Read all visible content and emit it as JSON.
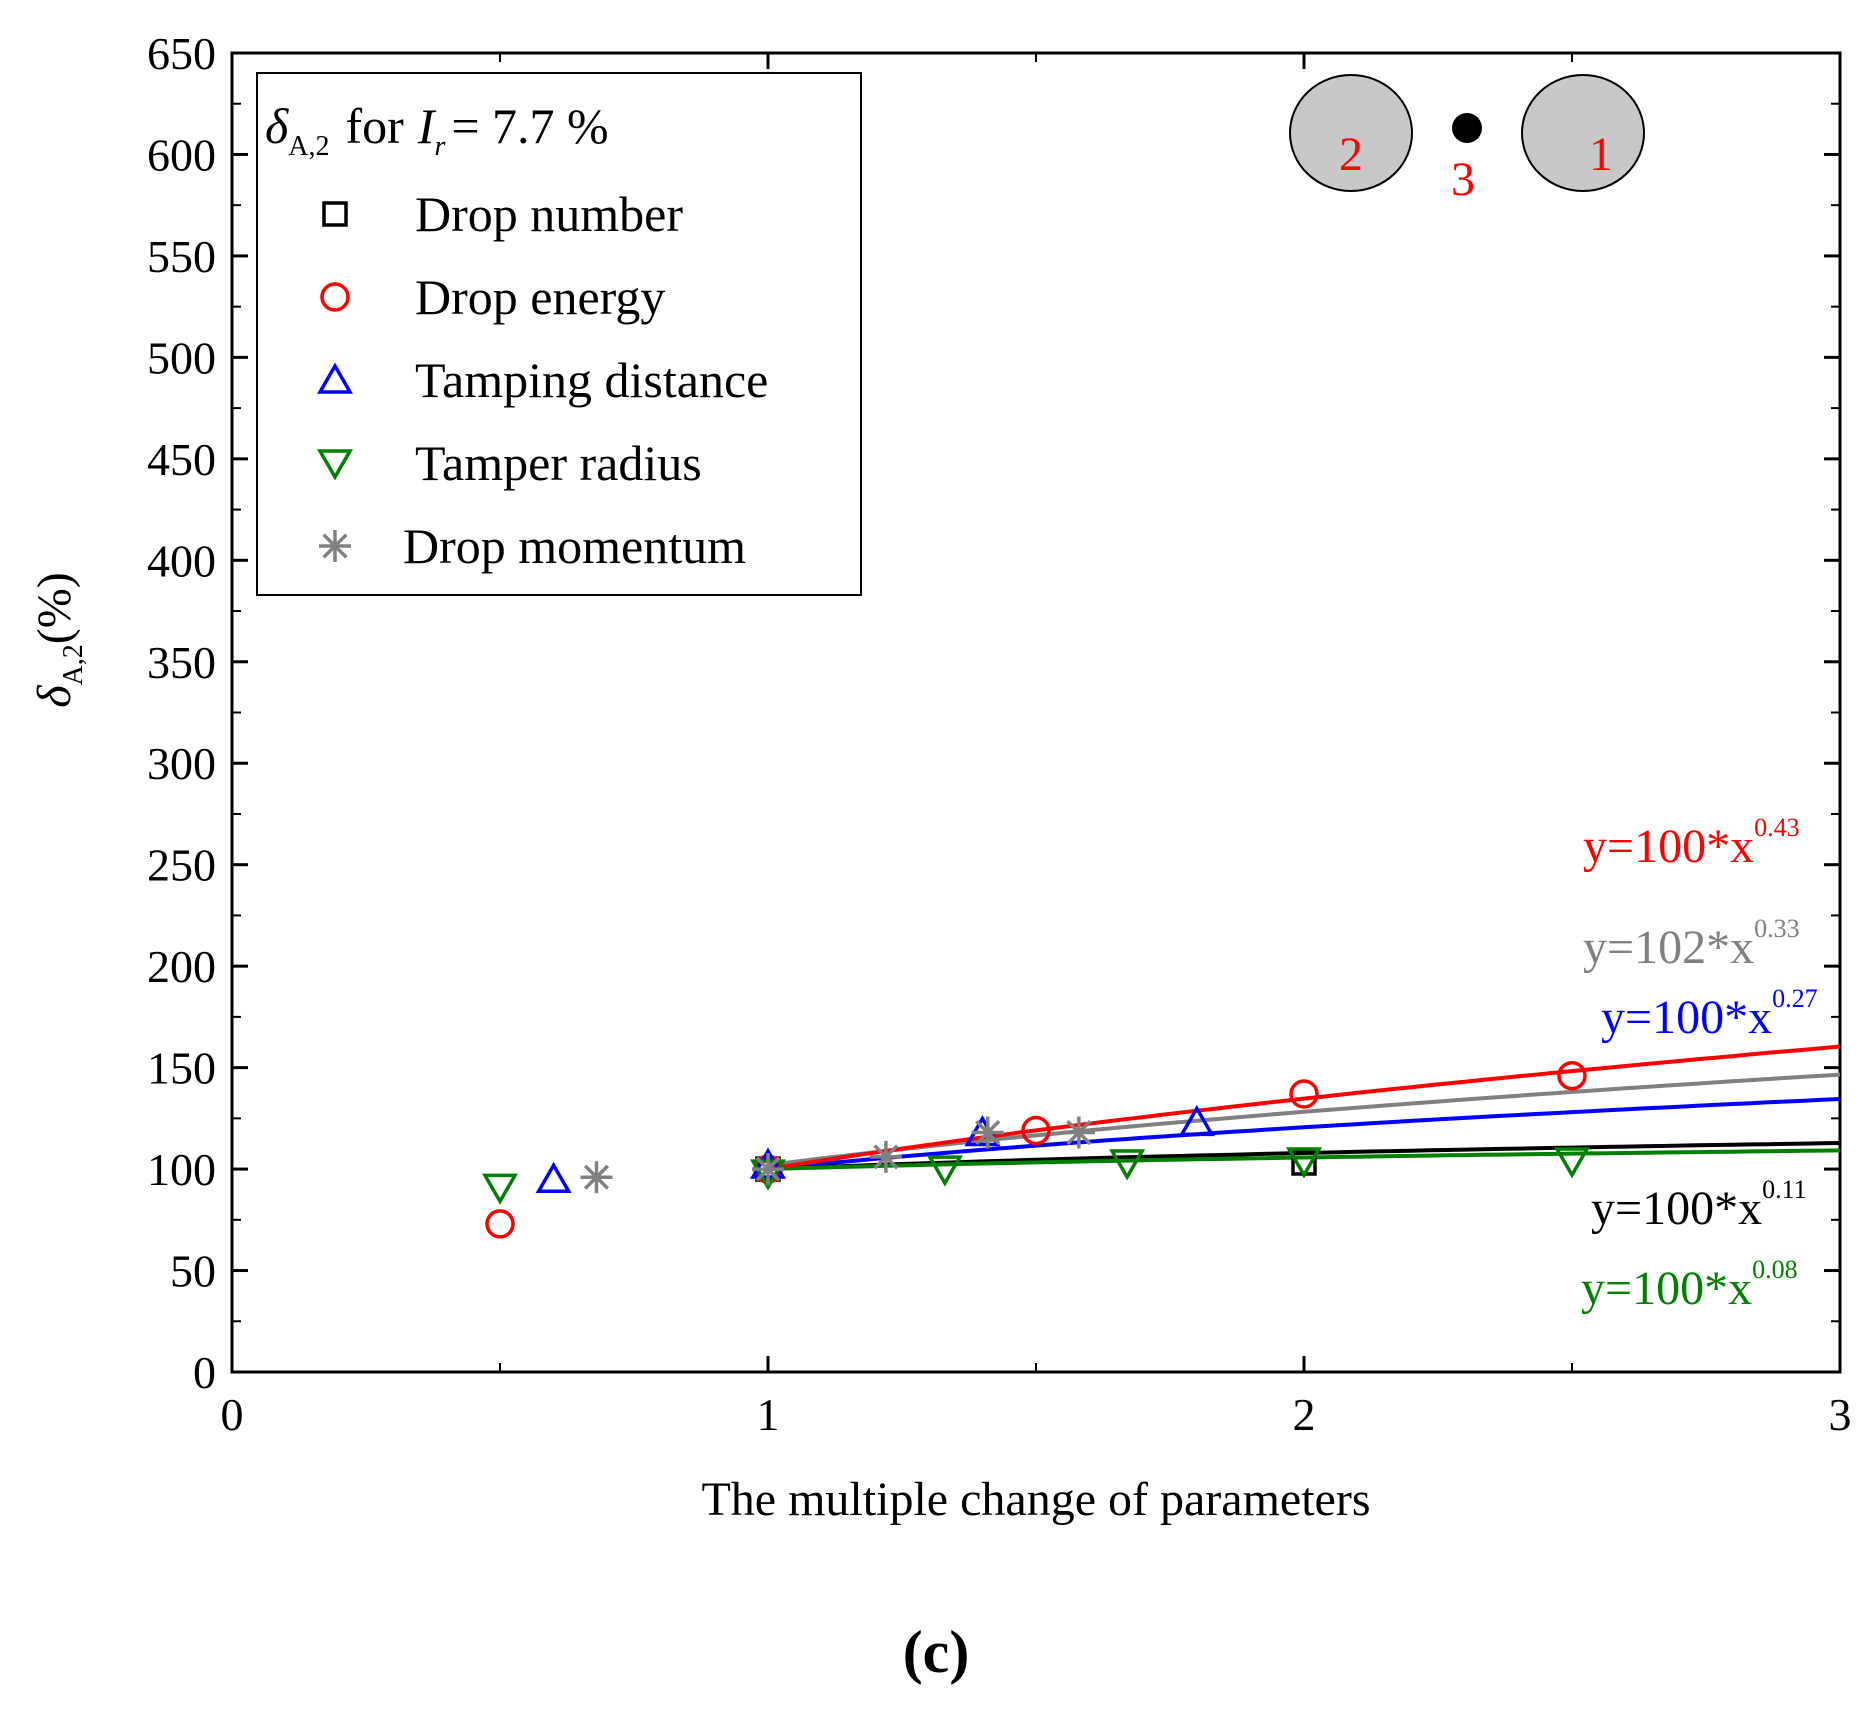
{
  "figure_label_open": "(",
  "figure_label_letter": "c",
  "figure_label_close": ")",
  "legend": {
    "title_symbol": "δ",
    "title_sub": "A,2",
    "title_for": "for",
    "title_ir": "I",
    "title_ir_sub": "r",
    "title_eq": "= 7.7 %"
  },
  "inset": {
    "circle_left": "2",
    "dot": "3",
    "circle_right": "1"
  },
  "colors": {
    "black": "#000000",
    "red": "#ff0000",
    "blue": "#0000ff",
    "green": "#008000",
    "gray": "#808080"
  },
  "chart_data": {
    "type": "scatter",
    "xlabel": "The multiple change of parameters",
    "ylabel_symbol": "δ",
    "ylabel_sub": "A,2",
    "ylabel_unit": "(%)",
    "xlim": [
      0,
      3
    ],
    "ylim": [
      0,
      650
    ],
    "x_ticks": [
      "0",
      "1",
      "2",
      "3"
    ],
    "y_ticks": [
      "0",
      "50",
      "100",
      "150",
      "200",
      "250",
      "300",
      "350",
      "400",
      "450",
      "500",
      "550",
      "600",
      "650"
    ],
    "series": [
      {
        "name": "Drop number",
        "marker": "square",
        "color": "#000000",
        "points": [
          [
            1,
            100
          ],
          [
            2,
            103
          ]
        ],
        "fit": {
          "a": 100,
          "b": 0.11,
          "prefix": "y=100*x",
          "exp": "0.11"
        }
      },
      {
        "name": "Drop energy",
        "marker": "circle",
        "color": "#ff0000",
        "points": [
          [
            0.5,
            73
          ],
          [
            1,
            100
          ],
          [
            1.5,
            119
          ],
          [
            2,
            137
          ],
          [
            2.5,
            146
          ]
        ],
        "fit": {
          "a": 100,
          "b": 0.43,
          "prefix": "y=100*x",
          "exp": "0.43"
        }
      },
      {
        "name": "Tamping distance",
        "marker": "triangle-up",
        "color": "#0000ff",
        "points": [
          [
            0.6,
            95
          ],
          [
            1,
            102
          ],
          [
            1.4,
            118
          ],
          [
            1.8,
            123
          ]
        ],
        "fit": {
          "a": 100,
          "b": 0.27,
          "prefix": "y=100*x",
          "exp": "0.27"
        }
      },
      {
        "name": "Tamper radius",
        "marker": "triangle-down",
        "color": "#008000",
        "points": [
          [
            0.5,
            91
          ],
          [
            1,
            98
          ],
          [
            1.33,
            100
          ],
          [
            1.67,
            103
          ],
          [
            2,
            104
          ],
          [
            2.5,
            104
          ]
        ],
        "fit": {
          "a": 100,
          "b": 0.08,
          "prefix": "y=100*x",
          "exp": "0.08"
        }
      },
      {
        "name": "Drop momentum",
        "marker": "asterisk",
        "color": "#808080",
        "points": [
          [
            0.68,
            96
          ],
          [
            1,
            100
          ],
          [
            1.22,
            106
          ],
          [
            1.41,
            118
          ],
          [
            1.58,
            118
          ]
        ],
        "fit": {
          "a": 102,
          "b": 0.33,
          "prefix": "y=102*x",
          "exp": "0.33"
        }
      }
    ]
  }
}
